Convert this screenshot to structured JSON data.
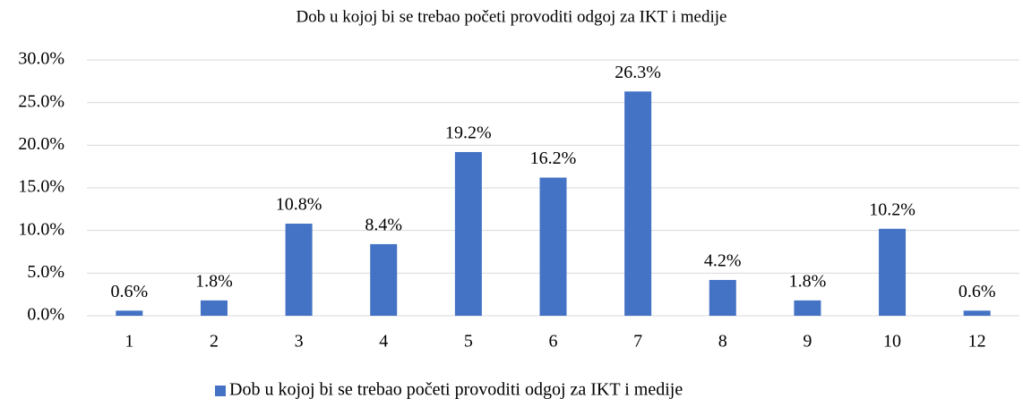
{
  "chart_data": {
    "type": "bar",
    "title": "Dob u kojoj bi se trebao početi provoditi odgoj za IKT i medije",
    "categories": [
      "1",
      "2",
      "3",
      "4",
      "5",
      "6",
      "7",
      "8",
      "9",
      "10",
      "12"
    ],
    "series": [
      {
        "name": "Dob u kojoj bi se trebao početi provoditi odgoj za IKT i medije",
        "color": "#4472c4",
        "values": [
          0.6,
          1.8,
          10.8,
          8.4,
          19.2,
          16.2,
          26.3,
          4.2,
          1.8,
          10.2,
          0.6
        ],
        "value_labels": [
          "0.6%",
          "1.8%",
          "10.8%",
          "8.4%",
          "19.2%",
          "16.2%",
          "26.3%",
          "4.2%",
          "1.8%",
          "10.2%",
          "0.6%"
        ]
      }
    ],
    "ylim": [
      0,
      30
    ],
    "yticks": [
      {
        "value": 0,
        "label": "0.0%"
      },
      {
        "value": 5,
        "label": "5.0%"
      },
      {
        "value": 10,
        "label": "10.0%"
      },
      {
        "value": 15,
        "label": "15.0%"
      },
      {
        "value": 20,
        "label": "20.0%"
      },
      {
        "value": 25,
        "label": "25.0%"
      },
      {
        "value": 30,
        "label": "30.0%"
      }
    ],
    "grid": true,
    "legend": "bottom"
  }
}
